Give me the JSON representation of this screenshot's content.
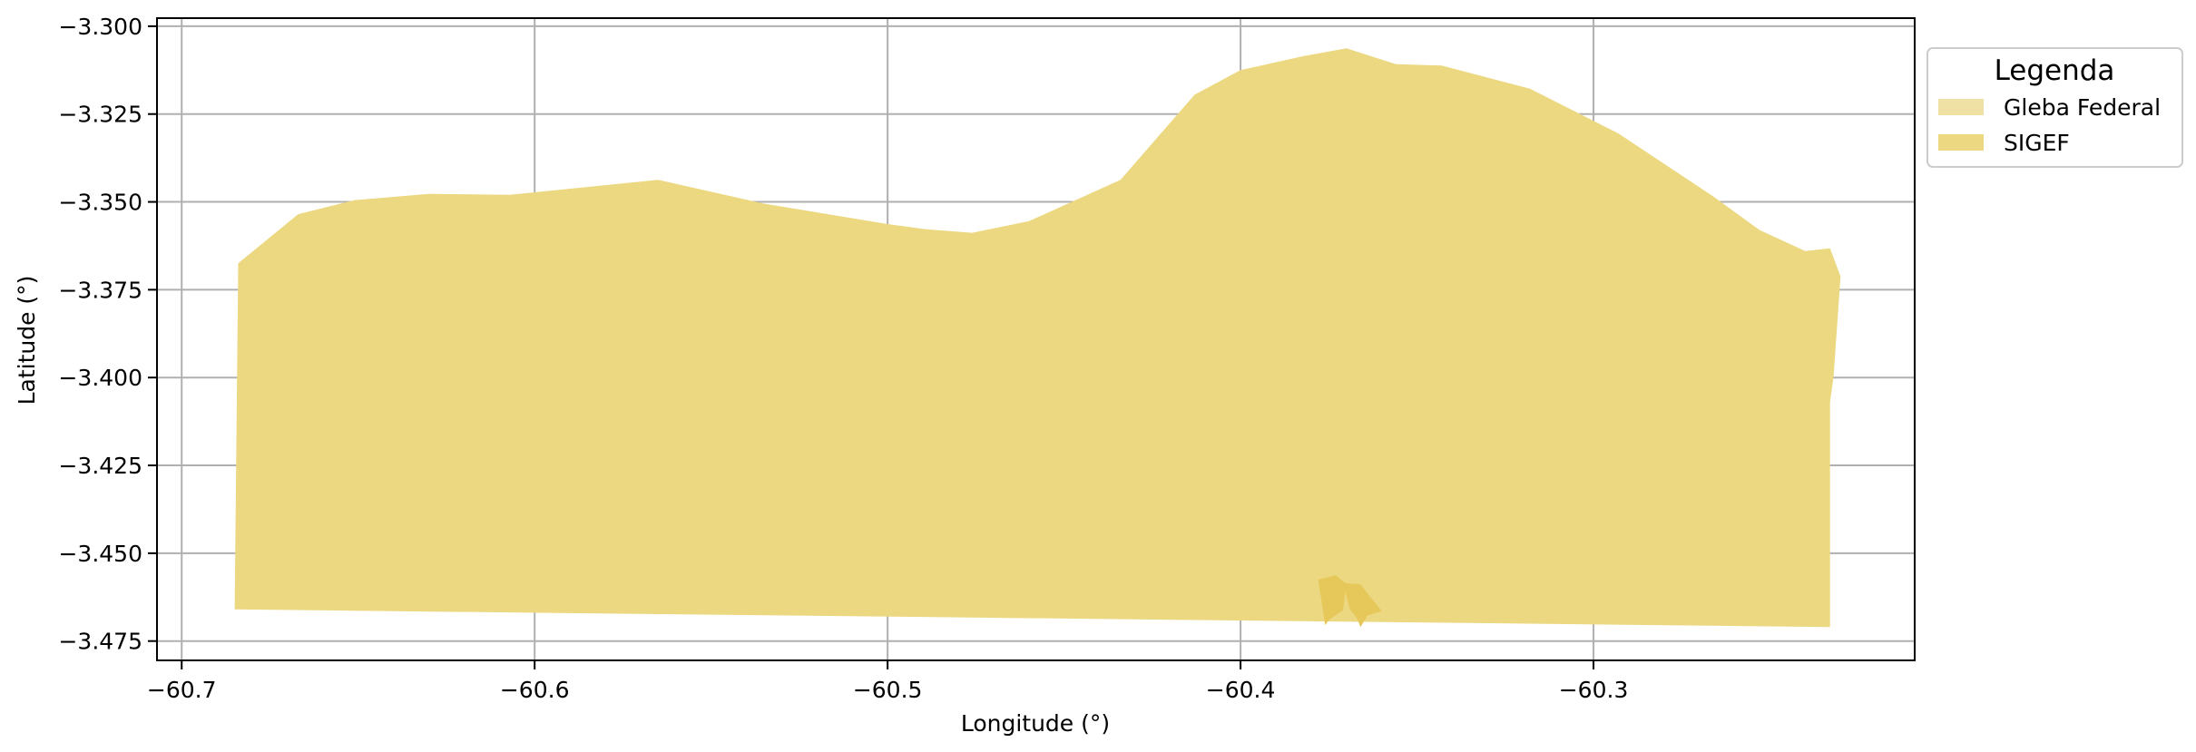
{
  "chart_data": {
    "type": "map",
    "title": "",
    "xlabel": "Longitude (°)",
    "ylabel": "Latitude (°)",
    "xlim": [
      -60.707,
      -60.209
    ],
    "ylim": [
      -3.4805,
      -3.2977
    ],
    "grid": true,
    "x_ticks": [
      -60.7,
      -60.6,
      -60.5,
      -60.4,
      -60.3
    ],
    "x_tick_labels": [
      "−60.7",
      "−60.6",
      "−60.5",
      "−60.4",
      "−60.3"
    ],
    "y_ticks": [
      -3.3,
      -3.325,
      -3.35,
      -3.375,
      -3.4,
      -3.425,
      -3.45,
      -3.475
    ],
    "y_tick_labels": [
      "−3.300",
      "−3.325",
      "−3.350",
      "−3.375",
      "−3.400",
      "−3.425",
      "−3.450",
      "−3.475"
    ],
    "legend": {
      "title": "Legenda",
      "placement": "outside-right-top",
      "entries": [
        {
          "label": "Gleba Federal",
          "color": "#efe0a3"
        },
        {
          "label": "SIGEF",
          "color": "#ecd880"
        }
      ]
    },
    "series": [
      {
        "name": "Gleba Federal",
        "color": "#ecd880",
        "polygons": [
          [
            [
              -60.684,
              -3.3675
            ],
            [
              -60.667,
              -3.3535
            ],
            [
              -60.651,
              -3.3495
            ],
            [
              -60.63,
              -3.3477
            ],
            [
              -60.607,
              -3.348
            ],
            [
              -60.565,
              -3.3437
            ],
            [
              -60.535,
              -3.3505
            ],
            [
              -60.5,
              -3.3563
            ],
            [
              -60.489,
              -3.3578
            ],
            [
              -60.476,
              -3.3588
            ],
            [
              -60.46,
              -3.3555
            ],
            [
              -60.434,
              -3.3437
            ],
            [
              -60.413,
              -3.3195
            ],
            [
              -60.4,
              -3.3125
            ],
            [
              -60.382,
              -3.3085
            ],
            [
              -60.37,
              -3.3063
            ],
            [
              -60.356,
              -3.3108
            ],
            [
              -60.343,
              -3.3112
            ],
            [
              -60.318,
              -3.3178
            ],
            [
              -60.293,
              -3.3305
            ],
            [
              -60.266,
              -3.3485
            ],
            [
              -60.253,
              -3.358
            ],
            [
              -60.24,
              -3.364
            ],
            [
              -60.233,
              -3.3632
            ],
            [
              -60.23,
              -3.3712
            ],
            [
              -60.232,
              -3.4
            ],
            [
              -60.233,
              -3.407
            ],
            [
              -60.233,
              -3.471
            ],
            [
              -60.685,
              -3.466
            ]
          ]
        ]
      },
      {
        "name": "SIGEF",
        "color": "#e6c75a",
        "polygons": [
          [
            [
              -60.378,
              -3.4575
            ],
            [
              -60.373,
              -3.4563
            ],
            [
              -60.37,
              -3.4588
            ],
            [
              -60.371,
              -3.4662
            ],
            [
              -60.375,
              -3.469
            ],
            [
              -60.376,
              -3.4705
            ]
          ],
          [
            [
              -60.371,
              -3.4585
            ],
            [
              -60.366,
              -3.4588
            ],
            [
              -60.364,
              -3.4615
            ],
            [
              -60.36,
              -3.4665
            ],
            [
              -60.364,
              -3.4677
            ],
            [
              -60.366,
              -3.471
            ],
            [
              -60.367,
              -3.4685
            ],
            [
              -60.369,
              -3.466
            ]
          ]
        ]
      }
    ]
  }
}
